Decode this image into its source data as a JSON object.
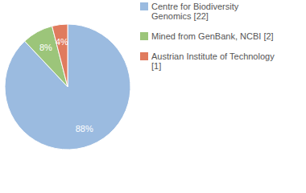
{
  "chart_data": {
    "type": "pie",
    "categories": [
      "Centre for Biodiversity Genomics [22]",
      "Mined from GenBank, NCBI [2]",
      "Austrian Institute of Technology [1]"
    ],
    "values": [
      88,
      8,
      4
    ],
    "value_labels": [
      "88%",
      "8%",
      "4%"
    ],
    "colors": [
      "#9bbbe0",
      "#9cc57a",
      "#e07b5e"
    ],
    "data_labels": true,
    "legend": "top-right"
  }
}
